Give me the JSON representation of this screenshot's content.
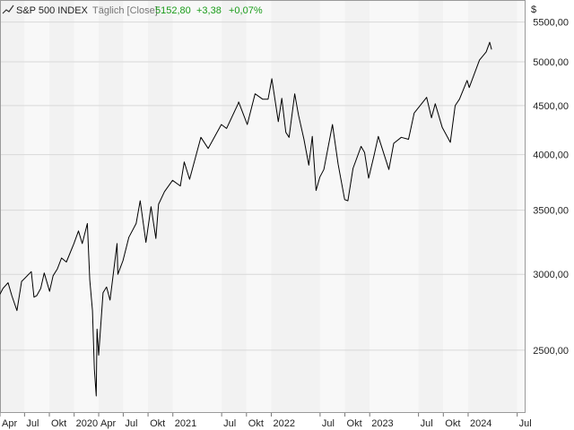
{
  "header": {
    "symbol": "S&P 500 INDEX",
    "interval": "Täglich [Close]",
    "last": "5152,80",
    "change": "+3,38",
    "change_pct": "+0,07%"
  },
  "colors": {
    "positive": "#1a9c1a",
    "series": "#000000",
    "band_a": "#f2f2f2",
    "band_b": "#f8f8f8",
    "grid": "#d8d8d8"
  },
  "chart_data": {
    "type": "line",
    "scale": "log",
    "currency_label": "$",
    "y_ticks": [
      {
        "value": 2500,
        "label": "2500,00"
      },
      {
        "value": 3000,
        "label": "3000,00"
      },
      {
        "value": 3500,
        "label": "3500,00"
      },
      {
        "value": 4000,
        "label": "4000,00"
      },
      {
        "value": 4500,
        "label": "4500,00"
      },
      {
        "value": 5000,
        "label": "5000,00"
      },
      {
        "value": 5500,
        "label": "5500,00"
      }
    ],
    "ylim": [
      2150,
      5800
    ],
    "xlim": [
      "2019-04-01",
      "2024-08-01"
    ],
    "x_ticks": [
      {
        "date": "2019-04-01",
        "label": "Apr"
      },
      {
        "date": "2019-07-01",
        "label": "Jul"
      },
      {
        "date": "2019-10-01",
        "label": "Okt"
      },
      {
        "date": "2020-01-01",
        "label": "2020"
      },
      {
        "date": "2020-04-01",
        "label": "Apr"
      },
      {
        "date": "2020-07-01",
        "label": "Jul"
      },
      {
        "date": "2020-10-01",
        "label": "Okt"
      },
      {
        "date": "2021-01-01",
        "label": "2021"
      },
      {
        "date": "2021-07-01",
        "label": "Jul"
      },
      {
        "date": "2021-10-01",
        "label": "Okt"
      },
      {
        "date": "2022-01-01",
        "label": "2022"
      },
      {
        "date": "2022-07-01",
        "label": "Jul"
      },
      {
        "date": "2022-10-01",
        "label": "Okt"
      },
      {
        "date": "2023-01-01",
        "label": "2023"
      },
      {
        "date": "2023-07-01",
        "label": "Jul"
      },
      {
        "date": "2023-10-01",
        "label": "Okt"
      },
      {
        "date": "2024-01-01",
        "label": "2024"
      },
      {
        "date": "2024-07-01",
        "label": "Jul"
      }
    ],
    "series": [
      {
        "points": [
          [
            "2019-04-01",
            2860
          ],
          [
            "2019-04-12",
            2900
          ],
          [
            "2019-05-01",
            2940
          ],
          [
            "2019-05-15",
            2850
          ],
          [
            "2019-06-03",
            2750
          ],
          [
            "2019-06-20",
            2950
          ],
          [
            "2019-07-01",
            2970
          ],
          [
            "2019-07-26",
            3020
          ],
          [
            "2019-08-05",
            2840
          ],
          [
            "2019-08-15",
            2850
          ],
          [
            "2019-08-30",
            2900
          ],
          [
            "2019-09-12",
            3010
          ],
          [
            "2019-10-02",
            2880
          ],
          [
            "2019-10-15",
            2990
          ],
          [
            "2019-10-31",
            3040
          ],
          [
            "2019-11-15",
            3120
          ],
          [
            "2019-12-03",
            3090
          ],
          [
            "2019-12-31",
            3230
          ],
          [
            "2020-01-17",
            3330
          ],
          [
            "2020-01-31",
            3230
          ],
          [
            "2020-02-19",
            3390
          ],
          [
            "2020-02-28",
            2960
          ],
          [
            "2020-03-09",
            2750
          ],
          [
            "2020-03-16",
            2390
          ],
          [
            "2020-03-23",
            2240
          ],
          [
            "2020-03-26",
            2630
          ],
          [
            "2020-04-01",
            2470
          ],
          [
            "2020-04-17",
            2870
          ],
          [
            "2020-04-30",
            2910
          ],
          [
            "2020-05-13",
            2820
          ],
          [
            "2020-06-08",
            3230
          ],
          [
            "2020-06-11",
            3000
          ],
          [
            "2020-06-30",
            3100
          ],
          [
            "2020-07-22",
            3280
          ],
          [
            "2020-08-18",
            3390
          ],
          [
            "2020-09-02",
            3580
          ],
          [
            "2020-09-23",
            3240
          ],
          [
            "2020-10-12",
            3530
          ],
          [
            "2020-10-30",
            3270
          ],
          [
            "2020-11-09",
            3550
          ],
          [
            "2020-12-01",
            3660
          ],
          [
            "2020-12-31",
            3760
          ],
          [
            "2021-01-29",
            3710
          ],
          [
            "2021-02-12",
            3930
          ],
          [
            "2021-03-04",
            3770
          ],
          [
            "2021-04-15",
            4170
          ],
          [
            "2021-05-12",
            4060
          ],
          [
            "2021-06-30",
            4300
          ],
          [
            "2021-07-19",
            4260
          ],
          [
            "2021-08-31",
            4520
          ],
          [
            "2021-09-02",
            4540
          ],
          [
            "2021-10-04",
            4300
          ],
          [
            "2021-11-02",
            4630
          ],
          [
            "2021-11-30",
            4570
          ],
          [
            "2021-12-20",
            4570
          ],
          [
            "2022-01-03",
            4800
          ],
          [
            "2022-01-27",
            4330
          ],
          [
            "2022-02-09",
            4580
          ],
          [
            "2022-02-24",
            4220
          ],
          [
            "2022-03-08",
            4170
          ],
          [
            "2022-03-29",
            4630
          ],
          [
            "2022-04-12",
            4400
          ],
          [
            "2022-05-02",
            4150
          ],
          [
            "2022-05-20",
            3900
          ],
          [
            "2022-06-02",
            4180
          ],
          [
            "2022-06-16",
            3670
          ],
          [
            "2022-06-30",
            3790
          ],
          [
            "2022-07-15",
            3860
          ],
          [
            "2022-08-16",
            4300
          ],
          [
            "2022-09-06",
            3910
          ],
          [
            "2022-09-30",
            3590
          ],
          [
            "2022-10-12",
            3580
          ],
          [
            "2022-10-31",
            3870
          ],
          [
            "2022-11-30",
            4080
          ],
          [
            "2022-12-13",
            4020
          ],
          [
            "2022-12-28",
            3780
          ],
          [
            "2023-01-17",
            3990
          ],
          [
            "2023-02-02",
            4180
          ],
          [
            "2023-03-13",
            3860
          ],
          [
            "2023-03-31",
            4110
          ],
          [
            "2023-04-28",
            4170
          ],
          [
            "2023-05-25",
            4150
          ],
          [
            "2023-06-15",
            4420
          ],
          [
            "2023-07-31",
            4590
          ],
          [
            "2023-08-18",
            4370
          ],
          [
            "2023-09-01",
            4520
          ],
          [
            "2023-09-27",
            4270
          ],
          [
            "2023-10-27",
            4120
          ],
          [
            "2023-11-14",
            4500
          ],
          [
            "2023-11-30",
            4570
          ],
          [
            "2023-12-28",
            4780
          ],
          [
            "2024-01-05",
            4700
          ],
          [
            "2024-02-12",
            5020
          ],
          [
            "2024-03-08",
            5120
          ],
          [
            "2024-03-21",
            5240
          ],
          [
            "2024-03-28",
            5150
          ]
        ]
      }
    ]
  }
}
